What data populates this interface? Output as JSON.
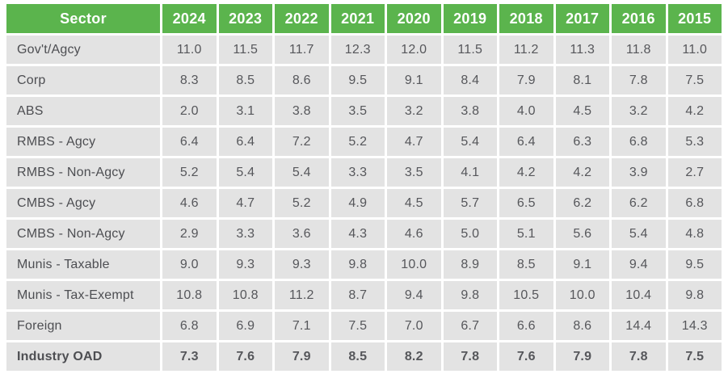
{
  "colors": {
    "header_bg": "#5bb44d",
    "header_text": "#ffffff",
    "row_bg": "#e3e3e3",
    "label_text": "#4d4e52",
    "value_text": "#56575b",
    "page_bg": "#ffffff"
  },
  "chart_data": {
    "type": "table",
    "columns": [
      "Sector",
      "2024",
      "2023",
      "2022",
      "2021",
      "2020",
      "2019",
      "2018",
      "2017",
      "2016",
      "2015"
    ],
    "rows": [
      {
        "label": "Gov't/Agcy",
        "values": [
          11.0,
          11.5,
          11.7,
          12.3,
          12.0,
          11.5,
          11.2,
          11.3,
          11.8,
          11.0
        ],
        "bold": false
      },
      {
        "label": "Corp",
        "values": [
          8.3,
          8.5,
          8.6,
          9.5,
          9.1,
          8.4,
          7.9,
          8.1,
          7.8,
          7.5
        ],
        "bold": false
      },
      {
        "label": "ABS",
        "values": [
          2.0,
          3.1,
          3.8,
          3.5,
          3.2,
          3.8,
          4.0,
          4.5,
          3.2,
          4.2
        ],
        "bold": false
      },
      {
        "label": "RMBS - Agcy",
        "values": [
          6.4,
          6.4,
          7.2,
          5.2,
          4.7,
          5.4,
          6.4,
          6.3,
          6.8,
          5.3
        ],
        "bold": false
      },
      {
        "label": "RMBS - Non-Agcy",
        "values": [
          5.2,
          5.4,
          5.4,
          3.3,
          3.5,
          4.1,
          4.2,
          4.2,
          3.9,
          2.7
        ],
        "bold": false
      },
      {
        "label": "CMBS - Agcy",
        "values": [
          4.6,
          4.7,
          5.2,
          4.9,
          4.5,
          5.7,
          6.5,
          6.2,
          6.2,
          6.8
        ],
        "bold": false
      },
      {
        "label": "CMBS - Non-Agcy",
        "values": [
          2.9,
          3.3,
          3.6,
          4.3,
          4.6,
          5.0,
          5.1,
          5.6,
          5.4,
          4.8
        ],
        "bold": false
      },
      {
        "label": "Munis - Taxable",
        "values": [
          9.0,
          9.3,
          9.3,
          9.8,
          10.0,
          8.9,
          8.5,
          9.1,
          9.4,
          9.5
        ],
        "bold": false
      },
      {
        "label": "Munis - Tax-Exempt",
        "values": [
          10.8,
          10.8,
          11.2,
          8.7,
          9.4,
          9.8,
          10.5,
          10.0,
          10.4,
          9.8
        ],
        "bold": false
      },
      {
        "label": "Foreign",
        "values": [
          6.8,
          6.9,
          7.1,
          7.5,
          7.0,
          6.7,
          6.6,
          8.6,
          14.4,
          14.3
        ],
        "bold": false
      },
      {
        "label": "Industry OAD",
        "values": [
          7.3,
          7.6,
          7.9,
          8.5,
          8.2,
          7.8,
          7.6,
          7.9,
          7.8,
          7.5
        ],
        "bold": true
      }
    ],
    "title": "",
    "value_format": "one-decimal",
    "legend_position": "none",
    "grid": "cell-gaps-white"
  }
}
